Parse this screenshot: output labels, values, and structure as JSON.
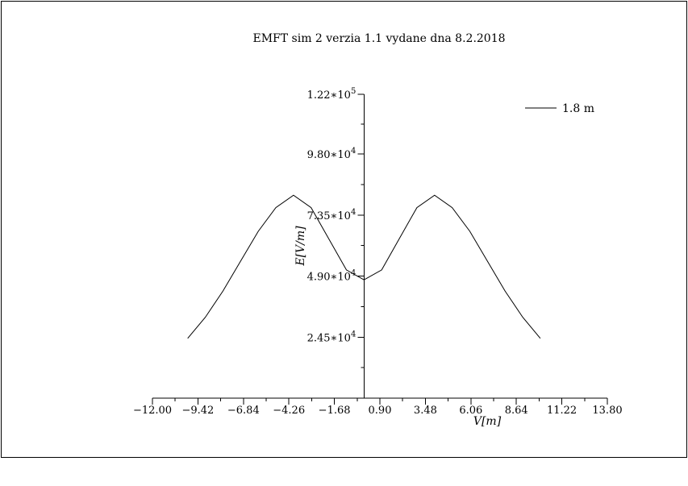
{
  "chart_data": {
    "type": "line",
    "title": "EMFT sim 2 verzia 1.1 vydane dna 8.2.2018",
    "xlabel": "V[m]",
    "ylabel": "E[V/m]",
    "xlim": [
      -12.0,
      13.8
    ],
    "ylim": [
      0,
      122000
    ],
    "grid": false,
    "legend_position": "top-right",
    "x_ticks": [
      -12.0,
      -9.42,
      -6.84,
      -4.26,
      -1.68,
      0.9,
      3.48,
      6.06,
      8.64,
      11.22,
      13.8
    ],
    "x_tick_labels": [
      "−12.00",
      "−9.42",
      "−6.84",
      "−4.26",
      "−1.68",
      "0.90",
      "3.48",
      "6.06",
      "8.64",
      "11.22",
      "13.80"
    ],
    "y_ticks": [
      24500,
      49000,
      73500,
      98000,
      122000
    ],
    "y_tick_labels": [
      {
        "mantissa": "2.45∗10",
        "exp": "4"
      },
      {
        "mantissa": "4.90∗10",
        "exp": "4"
      },
      {
        "mantissa": "7.35∗10",
        "exp": "4"
      },
      {
        "mantissa": "9.80∗10",
        "exp": "4"
      },
      {
        "mantissa": "1.22∗10",
        "exp": "5"
      }
    ],
    "series": [
      {
        "name": "1.8 m",
        "color": "#000000",
        "x": [
          -10.0,
          -9.0,
          -8.0,
          -7.0,
          -6.0,
          -5.0,
          -4.0,
          -3.0,
          -2.0,
          -1.0,
          0.0,
          1.0,
          2.0,
          3.0,
          4.0,
          5.0,
          6.0,
          7.0,
          8.0,
          9.0,
          10.0
        ],
        "y": [
          24000,
          32500,
          43000,
          55000,
          67000,
          76500,
          81500,
          76500,
          64000,
          51500,
          47500,
          51500,
          64000,
          76500,
          81500,
          76500,
          67000,
          55000,
          43000,
          32500,
          24000
        ]
      }
    ]
  }
}
